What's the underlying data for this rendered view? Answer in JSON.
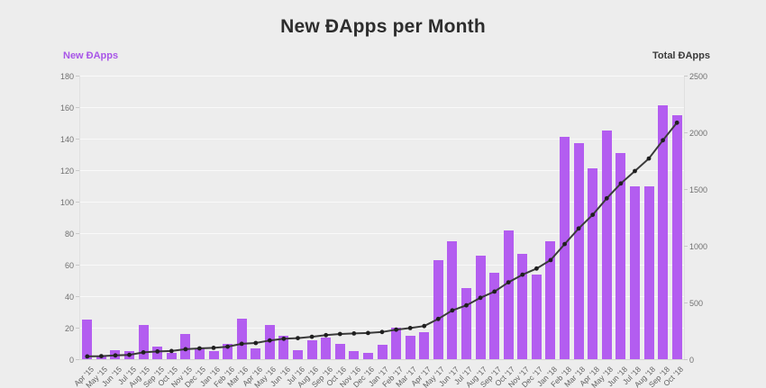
{
  "header": {
    "title": "New ĐApps per Month"
  },
  "legend": {
    "left_label": "New ĐApps",
    "right_label": "Total ĐApps",
    "left_color": "#a855e8",
    "right_color": "#3a3a3a"
  },
  "colors": {
    "background": "#ededed",
    "bar": "#b35df0",
    "line": "#3a3a3a",
    "dot": "#1f1f1f",
    "grid": "#f9f9f9",
    "axis_text": "#707070",
    "x_text": "#606060"
  },
  "chart_data": {
    "type": "bar",
    "title": "New ĐApps per Month",
    "categories": [
      "Apr '15",
      "May '15",
      "Jun '15",
      "Jul '15",
      "Aug '15",
      "Sep '15",
      "Oct '15",
      "Nov '15",
      "Dec '15",
      "Jan '16",
      "Feb '16",
      "Mar '16",
      "Apr '16",
      "May '16",
      "Jun '16",
      "Jul '16",
      "Aug '16",
      "Sep '16",
      "Oct '16",
      "Nov '16",
      "Dec '16",
      "Jan '17",
      "Feb '17",
      "Mar '17",
      "Apr '17",
      "May '17",
      "Jun '17",
      "Jul '17",
      "Aug '17",
      "Sep '17",
      "Oct '17",
      "Nov '17",
      "Dec '17",
      "Jan '18",
      "Feb '18",
      "Mar '18",
      "Apr '18",
      "May '18",
      "Jun '18",
      "Jul '18",
      "Aug '18",
      "Sep '18",
      "Oct '18"
    ],
    "series": [
      {
        "name": "New ĐApps",
        "type": "bar",
        "axis": "left",
        "color": "#b35df0",
        "values": [
          25,
          2,
          6,
          5,
          22,
          8,
          4,
          16,
          7,
          5,
          10,
          26,
          7,
          22,
          15,
          6,
          12,
          14,
          10,
          5,
          4,
          9,
          20,
          15,
          17,
          63,
          75,
          45,
          66,
          55,
          82,
          67,
          54,
          75,
          141,
          137,
          121,
          145,
          131,
          110,
          110,
          161,
          155
        ]
      },
      {
        "name": "Total ĐApps",
        "type": "line",
        "axis": "right",
        "color": "#3a3a3a",
        "values": [
          25,
          27,
          33,
          38,
          60,
          68,
          72,
          88,
          95,
          100,
          110,
          136,
          143,
          165,
          180,
          186,
          198,
          212,
          222,
          227,
          231,
          240,
          260,
          275,
          292,
          355,
          430,
          475,
          541,
          596,
          678,
          745,
          799,
          874,
          1015,
          1152,
          1273,
          1418,
          1549,
          1659,
          1769,
          1930,
          2085
        ]
      }
    ],
    "left_axis": {
      "label": "New ĐApps",
      "min": 0,
      "max": 180,
      "ticks": [
        0,
        20,
        40,
        60,
        80,
        100,
        120,
        140,
        160,
        180
      ]
    },
    "right_axis": {
      "label": "Total ĐApps",
      "min": 0,
      "max": 2500,
      "ticks": [
        0,
        500,
        1000,
        1500,
        2000,
        2500
      ]
    },
    "grid": "horizontal",
    "legend_position": "top-corners"
  }
}
